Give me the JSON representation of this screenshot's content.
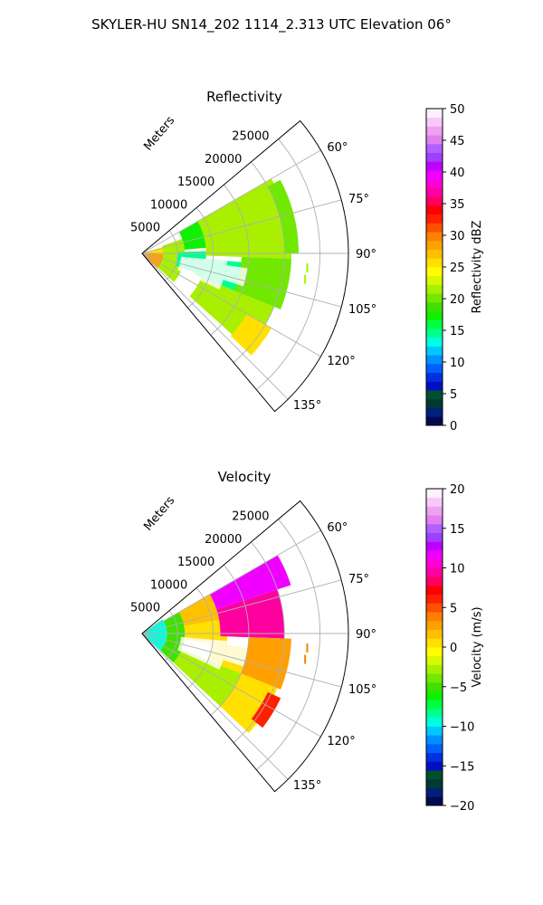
{
  "figure": {
    "suptitle": "SKYLER-HU  SN14_202  1114_2.313 UTC Elevation 06°"
  },
  "colors": {
    "grid": "#b0b0b0",
    "frame": "#000000"
  },
  "chart_data": [
    {
      "type": "heatmap",
      "projection": "polar-sector",
      "title": "Reflectivity",
      "field": "reflectivity",
      "range_label": "Meters",
      "range_ticks": [
        5000,
        10000,
        15000,
        20000,
        25000
      ],
      "range_tick_labels": [
        "5000",
        "10000",
        "15000",
        "20000",
        "25000"
      ],
      "rmax": 29000,
      "data_extent_m": 23000,
      "theta_range_deg": [
        50,
        140
      ],
      "theta_ticks": [
        60,
        75,
        90,
        105,
        120,
        135
      ],
      "theta_tick_labels": [
        "60°",
        "75°",
        "90°",
        "105°",
        "120°",
        "135°"
      ],
      "grid": true,
      "colorbar": {
        "label": "Reflectivity dBZ",
        "range": [
          0,
          50
        ],
        "ticks": [
          0,
          5,
          10,
          15,
          20,
          25,
          30,
          35,
          40,
          45,
          50
        ],
        "tick_labels": [
          "0",
          "5",
          "10",
          "15",
          "20",
          "25",
          "30",
          "35",
          "40",
          "45",
          "50"
        ],
        "colors": [
          "#000a50",
          "#00207a",
          "#003a30",
          "#004f30",
          "#0010c0",
          "#0030e0",
          "#0060ff",
          "#0090ff",
          "#00c8ff",
          "#00ffe0",
          "#00ff90",
          "#00ff40",
          "#10f000",
          "#40e000",
          "#70e800",
          "#a8f000",
          "#d8f800",
          "#ffff00",
          "#ffe000",
          "#ffc000",
          "#ffa000",
          "#ff8000",
          "#ff5000",
          "#ff2000",
          "#ff0000",
          "#ff0060",
          "#ff00a0",
          "#ff00d8",
          "#f000ff",
          "#c000ff",
          "#a040ff",
          "#b060ff",
          "#e080f0",
          "#f0a0f0",
          "#f8c8f8",
          "#fff0ff"
        ]
      },
      "sectors": [
        {
          "r0": 0,
          "r1": 3000,
          "t0": 90,
          "t1": 133,
          "value": 28
        },
        {
          "r0": 0,
          "r1": 3500,
          "t0": 73,
          "t1": 92,
          "value": 25
        },
        {
          "r0": 3000,
          "r1": 6000,
          "t0": 90,
          "t1": 132,
          "value": 22
        },
        {
          "r0": 3000,
          "r1": 6000,
          "t0": 70,
          "t1": 90,
          "value": 21
        },
        {
          "r0": 5000,
          "r1": 9000,
          "t0": 88,
          "t1": 110,
          "value": 14
        },
        {
          "r0": 6000,
          "r1": 14000,
          "t0": 60,
          "t1": 85,
          "value": 18
        },
        {
          "r0": 8000,
          "r1": 16000,
          "t0": 95,
          "t1": 112,
          "value": 15
        },
        {
          "r0": 9000,
          "r1": 21000,
          "t0": 60,
          "t1": 92,
          "value": 21
        },
        {
          "r0": 9000,
          "r1": 20000,
          "t0": 112,
          "t1": 132,
          "value": 21
        },
        {
          "r0": 17000,
          "r1": 21000,
          "t0": 120,
          "t1": 133,
          "value": 26
        },
        {
          "r0": 14000,
          "r1": 21000,
          "t0": 92,
          "t1": 112,
          "value": 20
        },
        {
          "r0": 20000,
          "r1": 22000,
          "t0": 62,
          "t1": 90,
          "value": 20
        }
      ],
      "blanks": [
        {
          "r0": 5500,
          "r1": 12000,
          "t0": 95,
          "t1": 115
        },
        {
          "r0": 12000,
          "r1": 15000,
          "t0": 98,
          "t1": 108
        }
      ],
      "specks": [
        {
          "r": 23300,
          "t": 95,
          "value": 22
        },
        {
          "r": 23200,
          "t": 99,
          "value": 22
        }
      ]
    },
    {
      "type": "heatmap",
      "projection": "polar-sector",
      "title": "Velocity",
      "field": "velocity",
      "range_label": "Meters",
      "range_ticks": [
        5000,
        10000,
        15000,
        20000,
        25000
      ],
      "range_tick_labels": [
        "5000",
        "10000",
        "15000",
        "20000",
        "25000"
      ],
      "rmax": 29000,
      "data_extent_m": 23000,
      "theta_range_deg": [
        50,
        140
      ],
      "theta_ticks": [
        60,
        75,
        90,
        105,
        120,
        135
      ],
      "theta_tick_labels": [
        "60°",
        "75°",
        "90°",
        "105°",
        "120°",
        "135°"
      ],
      "grid": true,
      "colorbar": {
        "label": "Velocity (m/s)",
        "range": [
          -20,
          20
        ],
        "ticks": [
          -20,
          -15,
          -10,
          -5,
          0,
          5,
          10,
          15,
          20
        ],
        "tick_labels": [
          "−20",
          "−15",
          "−10",
          "−5",
          "0",
          "5",
          "10",
          "15",
          "20"
        ],
        "colors": [
          "#000a50",
          "#00207a",
          "#003a30",
          "#004f30",
          "#0010c0",
          "#0030e0",
          "#0060ff",
          "#0090ff",
          "#00c8ff",
          "#00ffe0",
          "#00ff90",
          "#00ff40",
          "#10f000",
          "#40e000",
          "#70e800",
          "#a8f000",
          "#d8f800",
          "#ffff00",
          "#ffe000",
          "#ffc000",
          "#ffa000",
          "#ff8000",
          "#ff5000",
          "#ff2000",
          "#ff0000",
          "#ff0060",
          "#ff00a0",
          "#ff00d8",
          "#f000ff",
          "#c000ff",
          "#a040ff",
          "#b060ff",
          "#e080f0",
          "#f0a0f0",
          "#f8c8f8",
          "#fff0ff"
        ]
      },
      "sectors": [
        {
          "r0": 0,
          "r1": 3500,
          "t0": 55,
          "t1": 133,
          "value": -10
        },
        {
          "r0": 3500,
          "r1": 6000,
          "t0": 60,
          "t1": 133,
          "value": -5
        },
        {
          "r0": 6000,
          "r1": 11000,
          "t0": 60,
          "t1": 80,
          "value": 2
        },
        {
          "r0": 6000,
          "r1": 12000,
          "t0": 80,
          "t1": 98,
          "value": 0
        },
        {
          "r0": 6000,
          "r1": 15000,
          "t0": 112,
          "t1": 133,
          "value": -3
        },
        {
          "r0": 10000,
          "r1": 16000,
          "t0": 98,
          "t1": 112,
          "value": 1
        },
        {
          "r0": 11000,
          "r1": 22000,
          "t0": 60,
          "t1": 72,
          "value": 12
        },
        {
          "r0": 11000,
          "r1": 20000,
          "t0": 72,
          "t1": 92,
          "value": 9
        },
        {
          "r0": 15000,
          "r1": 21000,
          "t0": 92,
          "t1": 112,
          "value": 3
        },
        {
          "r0": 15000,
          "r1": 20500,
          "t0": 112,
          "t1": 133,
          "value": 0
        },
        {
          "r0": 19500,
          "r1": 21500,
          "t0": 115,
          "t1": 128,
          "value": 6
        }
      ],
      "blanks": [
        {
          "r0": 5500,
          "r1": 12000,
          "t0": 95,
          "t1": 115
        },
        {
          "r0": 12000,
          "r1": 15000,
          "t0": 98,
          "t1": 108
        }
      ],
      "specks": [
        {
          "r": 23300,
          "t": 95,
          "value": 4
        },
        {
          "r": 23200,
          "t": 99,
          "value": 4
        }
      ]
    }
  ]
}
